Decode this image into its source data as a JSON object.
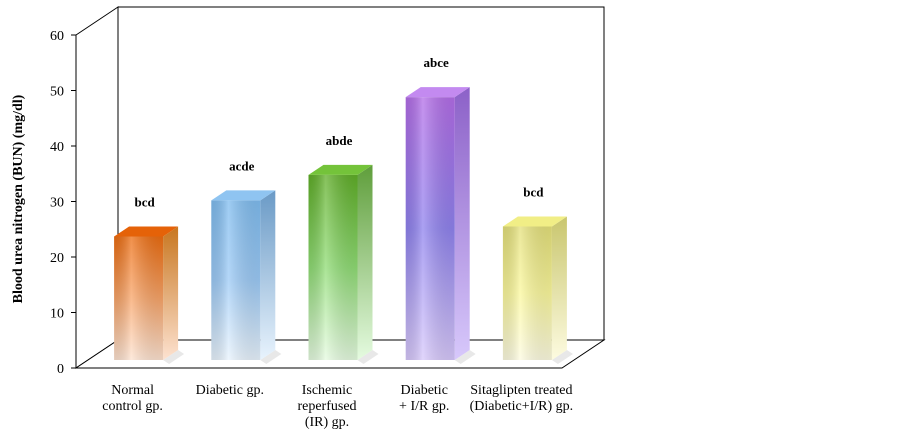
{
  "chart_data": {
    "type": "bar",
    "title": "",
    "xlabel": "",
    "ylabel": "Blood urea nitrogen (BUN) (mg/dl)",
    "ylim": [
      0,
      60
    ],
    "yticks": [
      0,
      10,
      20,
      30,
      40,
      50,
      60
    ],
    "categories": [
      [
        "Normal",
        "control gp."
      ],
      [
        "Diabetic gp."
      ],
      [
        "Ischemic",
        "reperfused",
        "(IR) gp."
      ],
      [
        "Diabetic",
        "+ I/R gp."
      ],
      [
        "Sitaglipten treated",
        "(Diabetic+I/R) gp."
      ]
    ],
    "values": [
      23.7,
      30.2,
      34.8,
      48.8,
      25.5
    ],
    "annotations": [
      "bcd",
      "acde",
      "abde",
      "abce",
      "bcd"
    ],
    "colors": [
      {
        "top": "#ec6c10",
        "front": "#f8a468",
        "light": "#fde2d0",
        "side": "#c8761f",
        "cap": "#e56208"
      },
      {
        "top": "#7fbcef",
        "front": "#9ccaf6",
        "light": "#e8f3fd",
        "side": "#6a9ac6",
        "cap": "#8fc4f1"
      },
      {
        "top": "#5fae27",
        "front": "#8fdc74",
        "light": "#e5fbe0",
        "side": "#5f9e3b",
        "cap": "#74c33a"
      },
      {
        "top": "#b36de8",
        "front": "#8f82ee",
        "light": "#d7c8fb",
        "side": "#8c61c8",
        "cap": "#c38af0"
      },
      {
        "top": "#e4e07a",
        "front": "#fbf89c",
        "light": "#fdfbe0",
        "side": "#c9c66e",
        "cap": "#f1ee86"
      }
    ],
    "grid": false,
    "legend": "none"
  }
}
